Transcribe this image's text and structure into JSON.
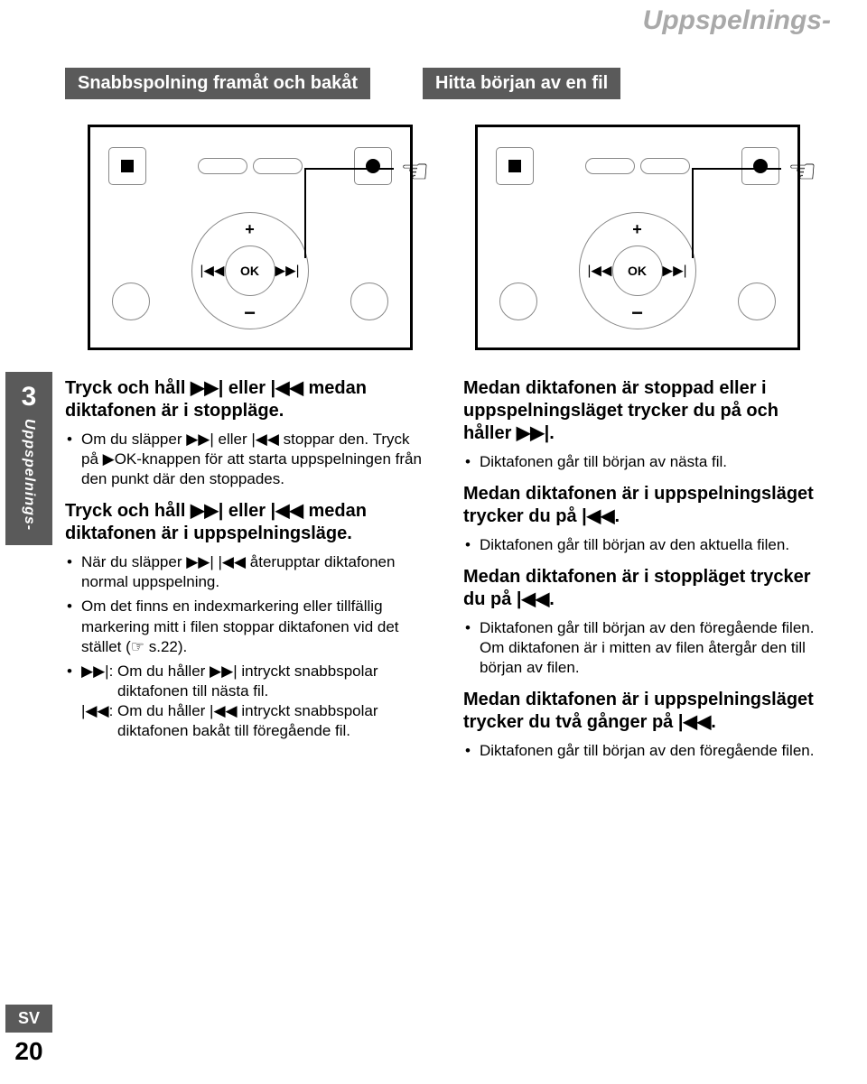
{
  "header": {
    "title": "Uppspelnings-"
  },
  "chapter_tab": {
    "number": "3",
    "label": "Uppspelnings-"
  },
  "section_heads": {
    "left": "Snabbspolning framåt och bakåt",
    "right": "Hitta början av en fil"
  },
  "diagram": {
    "ok_label": "OK"
  },
  "left_col": {
    "p1": "Tryck och håll ▶▶| eller |◀◀ medan diktafonen är i stoppläge.",
    "b1": "Om du släpper ▶▶| eller |◀◀ stoppar den. Tryck på ▶OK-knappen för att starta uppspelningen från den punkt där den stoppades.",
    "p2": "Tryck och håll ▶▶| eller |◀◀ medan diktafonen är i uppspelningsläge.",
    "b2": "När du släpper ▶▶| |◀◀ återupptar diktafonen normal uppspelning.",
    "b3": "Om det finns en indexmarkering eller tillfällig markering mitt i filen stoppar diktafonen vid det stället (☞ s.22).",
    "b4a": "▶▶|: Om du håller ▶▶| intryckt snabbspolar diktafonen till nästa fil.",
    "b4b": "|◀◀: Om du håller |◀◀ intryckt snabbspolar diktafonen bakåt till föregående fil."
  },
  "right_col": {
    "p1": "Medan diktafonen är stoppad eller i uppspelningsläget trycker du på och håller ▶▶|.",
    "b1": "Diktafonen går till början av nästa fil.",
    "p2": "Medan diktafonen är i uppspelningsläget trycker du på |◀◀.",
    "b2": "Diktafonen går till början av den aktuella filen.",
    "p3": "Medan diktafonen är i stoppläget trycker du på |◀◀.",
    "b3": "Diktafonen går till början av den föregående filen. Om diktafonen är i mitten av filen återgår den till början av filen.",
    "p4": "Medan diktafonen är i uppspelningsläget trycker du två gånger på |◀◀.",
    "b4": "Diktafonen går till början av den föregående filen."
  },
  "footer": {
    "lang": "SV",
    "page": "20"
  },
  "colors": {
    "band": "#5a5a5a",
    "header_text": "#a9a9a9",
    "text": "#000000",
    "bg": "#ffffff"
  }
}
